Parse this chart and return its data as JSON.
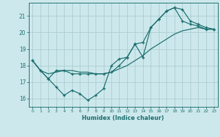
{
  "title": "",
  "xlabel": "Humidex (Indice chaleur)",
  "ylabel": "",
  "background_color": "#cde8ec",
  "grid_color": "#aaccd0",
  "line_color": "#1a6e6e",
  "xlim": [
    -0.5,
    23.5
  ],
  "ylim": [
    15.5,
    21.8
  ],
  "yticks": [
    16,
    17,
    18,
    19,
    20,
    21
  ],
  "xticks": [
    0,
    1,
    2,
    3,
    4,
    5,
    6,
    7,
    8,
    9,
    10,
    11,
    12,
    13,
    14,
    15,
    16,
    17,
    18,
    19,
    20,
    21,
    22,
    23
  ],
  "line1_x": [
    0,
    1,
    2,
    3,
    4,
    5,
    6,
    7,
    8,
    9,
    10,
    11,
    12,
    13,
    14,
    15,
    16,
    17,
    18,
    19,
    20,
    21,
    22,
    23
  ],
  "line1_y": [
    18.3,
    17.7,
    17.2,
    16.7,
    16.2,
    16.5,
    16.3,
    15.9,
    16.2,
    16.6,
    18.0,
    18.4,
    18.5,
    19.3,
    18.5,
    20.3,
    20.8,
    21.3,
    21.5,
    21.4,
    20.7,
    20.5,
    20.3,
    20.2
  ],
  "line2_x": [
    0,
    1,
    2,
    3,
    4,
    5,
    6,
    7,
    8,
    9,
    10,
    11,
    12,
    13,
    14,
    15,
    16,
    17,
    18,
    19,
    20,
    21,
    22,
    23
  ],
  "line2_y": [
    18.3,
    17.7,
    17.5,
    17.6,
    17.7,
    17.7,
    17.6,
    17.6,
    17.5,
    17.5,
    17.6,
    17.8,
    18.0,
    18.3,
    18.6,
    19.0,
    19.3,
    19.6,
    19.9,
    20.1,
    20.2,
    20.3,
    20.2,
    20.2
  ],
  "line3_x": [
    0,
    1,
    2,
    3,
    4,
    5,
    6,
    7,
    8,
    9,
    10,
    11,
    12,
    13,
    14,
    15,
    16,
    17,
    18,
    19,
    20,
    21,
    22,
    23
  ],
  "line3_y": [
    18.3,
    17.7,
    17.2,
    17.7,
    17.7,
    17.5,
    17.5,
    17.5,
    17.5,
    17.5,
    17.6,
    18.0,
    18.5,
    19.3,
    19.4,
    20.3,
    20.8,
    21.3,
    21.5,
    20.7,
    20.5,
    20.4,
    20.2,
    20.2
  ]
}
